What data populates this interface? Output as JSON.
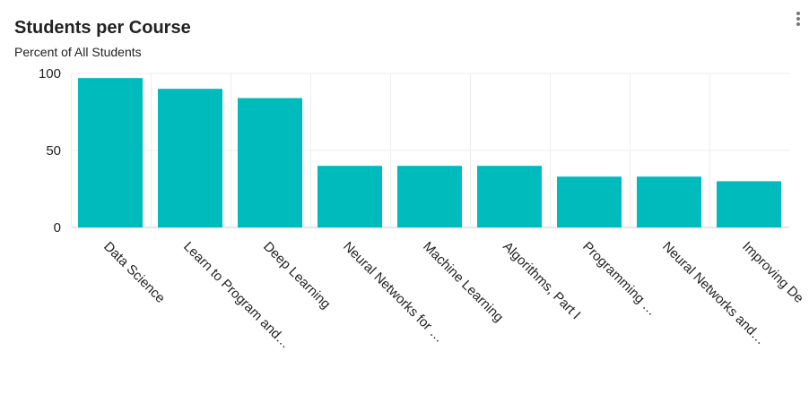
{
  "header": {
    "title": "Students per Course",
    "subtitle": "Percent of All Students"
  },
  "menu_icon": "more-vertical-icon",
  "colors": {
    "bar": "#00bbbb",
    "grid": "#eeeeee",
    "axis": "#cccccc"
  },
  "chart_data": {
    "type": "bar",
    "title": "Students per Course",
    "subtitle": "Percent of All Students",
    "xlabel": "",
    "ylabel": "",
    "ylim": [
      0,
      100
    ],
    "yticks": [
      0,
      50,
      100
    ],
    "grid": true,
    "categories": [
      "Data Science",
      "Learn to Program and…",
      "Deep Learning",
      "Neural Networks for …",
      "Machine Learning",
      "Algorithms, Part I",
      "Programming …",
      "Neural Networks and…",
      "Improving De"
    ],
    "values": [
      97,
      90,
      84,
      40,
      40,
      40,
      33,
      33,
      30
    ]
  }
}
